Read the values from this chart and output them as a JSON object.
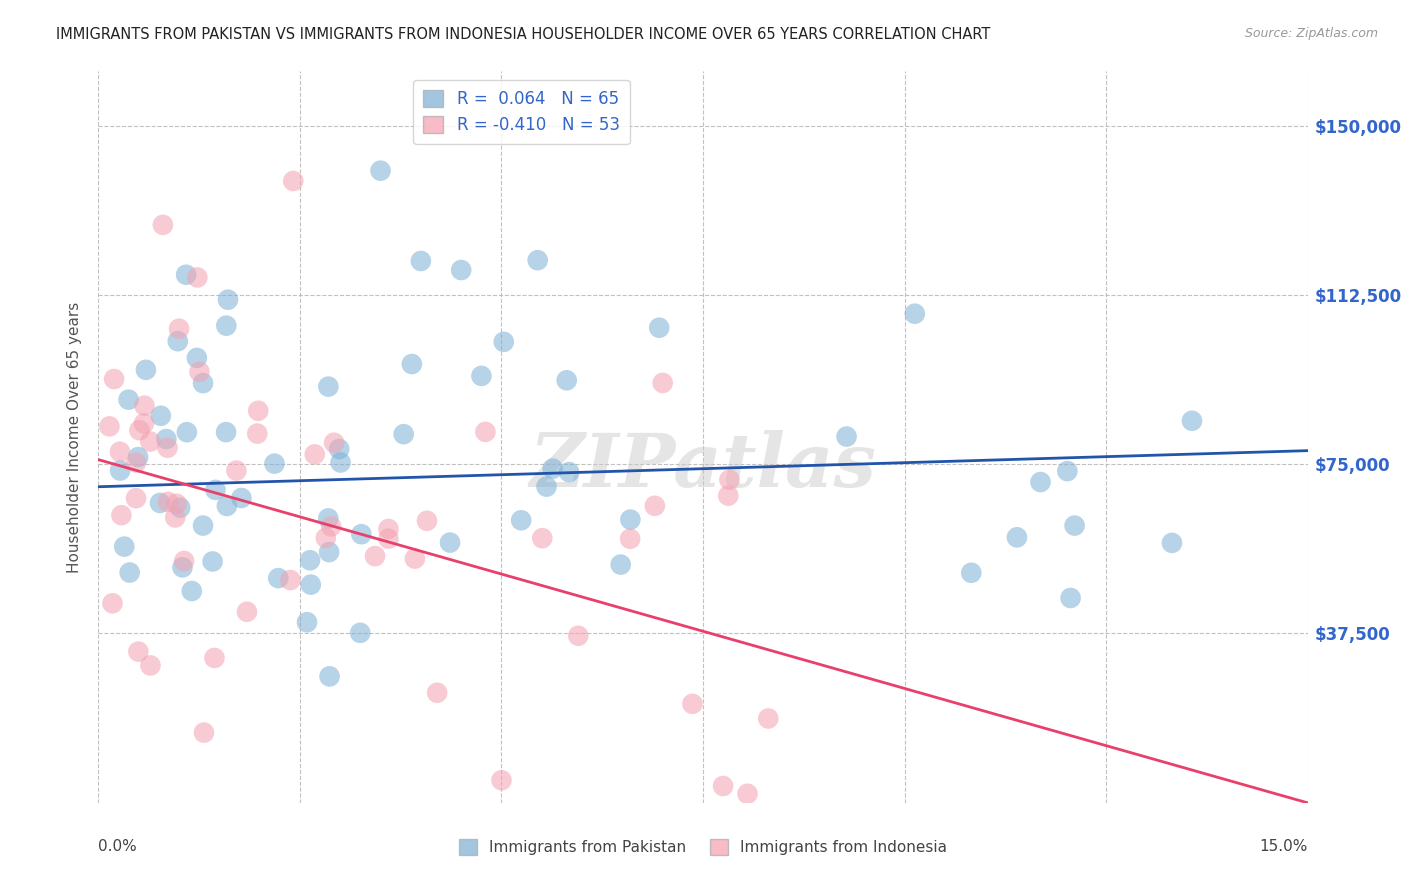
{
  "title": "IMMIGRANTS FROM PAKISTAN VS IMMIGRANTS FROM INDONESIA HOUSEHOLDER INCOME OVER 65 YEARS CORRELATION CHART",
  "source": "Source: ZipAtlas.com",
  "ylabel": "Householder Income Over 65 years",
  "ytick_labels": [
    "$150,000",
    "$112,500",
    "$75,000",
    "$37,500"
  ],
  "ytick_values": [
    150000,
    112500,
    75000,
    37500
  ],
  "ymin": 0,
  "ymax": 162000,
  "xmin": 0.0,
  "xmax": 15.0,
  "r_pakistan": 0.064,
  "n_pakistan": 65,
  "r_indonesia": -0.41,
  "n_indonesia": 53,
  "blue_color": "#7BAFD4",
  "pink_color": "#F4A0B0",
  "blue_line_color": "#2255AA",
  "pink_line_color": "#E8406A",
  "legend_label_pakistan": "Immigrants from Pakistan",
  "legend_label_indonesia": "Immigrants from Indonesia",
  "watermark": "ZIPatlas"
}
